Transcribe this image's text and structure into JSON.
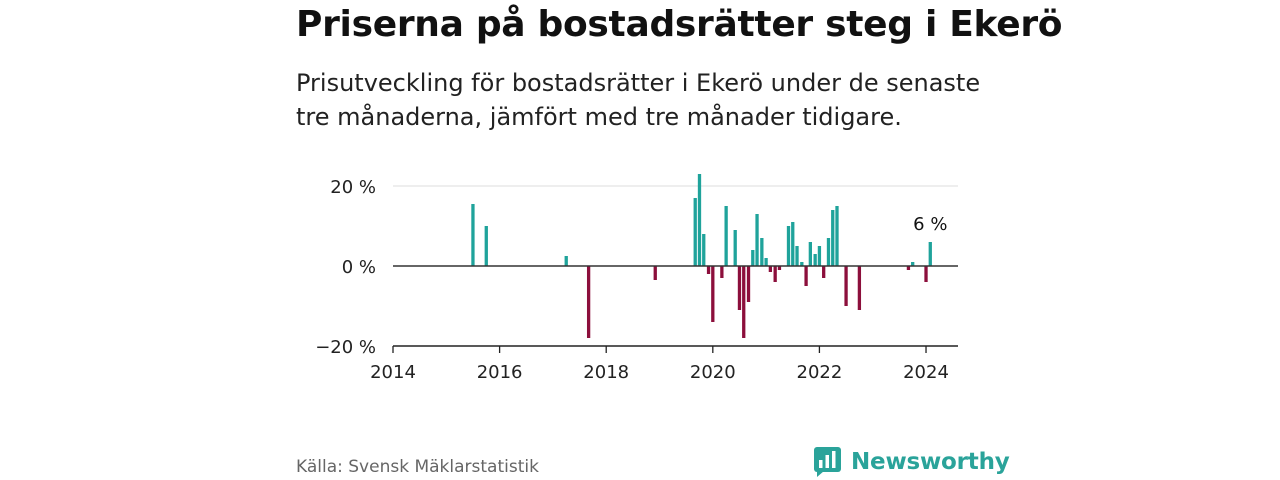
{
  "header": {
    "title": "Priserna på bostadsrätter steg i Ekerö",
    "subtitle": "Prisutveckling för bostadsrätter i Ekerö under de senaste tre månaderna, jämfört med tre månader tidigare."
  },
  "footer": {
    "source": "Källa: Svensk Mäklarstatistik",
    "brand": "Newsworthy",
    "brand_icon": "newsworthy-logo-icon"
  },
  "colors": {
    "positive": "#1fa39b",
    "negative": "#8c0f3c",
    "brand": "#2aa39a"
  },
  "chart_data": {
    "type": "bar",
    "title": "Priserna på bostadsrätter steg i Ekerö",
    "xlabel": "",
    "ylabel": "",
    "xlim": [
      2014,
      2024.6
    ],
    "ylim": [
      -20,
      20
    ],
    "x_ticks": [
      2014,
      2016,
      2018,
      2020,
      2022,
      2024
    ],
    "x_tick_labels": [
      "2014",
      "2016",
      "2018",
      "2020",
      "2022",
      "2024"
    ],
    "y_ticks": [
      -20,
      0,
      20
    ],
    "y_tick_labels": [
      "−20 %",
      "0 %",
      "20 %"
    ],
    "last_value_label": "6 %",
    "x": [
      2015.5,
      2015.75,
      2017.25,
      2017.67,
      2018.92,
      2019.67,
      2019.75,
      2019.83,
      2019.92,
      2020.0,
      2020.17,
      2020.25,
      2020.42,
      2020.5,
      2020.58,
      2020.67,
      2020.75,
      2020.83,
      2020.92,
      2021.0,
      2021.08,
      2021.17,
      2021.25,
      2021.42,
      2021.5,
      2021.58,
      2021.67,
      2021.75,
      2021.83,
      2021.92,
      2022.0,
      2022.08,
      2022.17,
      2022.25,
      2022.33,
      2022.5,
      2022.75,
      2023.67,
      2023.75,
      2024.0,
      2024.08
    ],
    "values": [
      15.5,
      10,
      2.5,
      -18,
      -3.5,
      17,
      23,
      8,
      -2,
      -14,
      -3,
      15,
      9,
      -11,
      -18,
      -9,
      4,
      13,
      7,
      2,
      -1.5,
      -4,
      -1,
      10,
      11,
      5,
      1,
      -5,
      6,
      3,
      5,
      -3,
      7,
      14,
      15,
      -10,
      -11,
      -1,
      1,
      -4,
      6
    ]
  }
}
